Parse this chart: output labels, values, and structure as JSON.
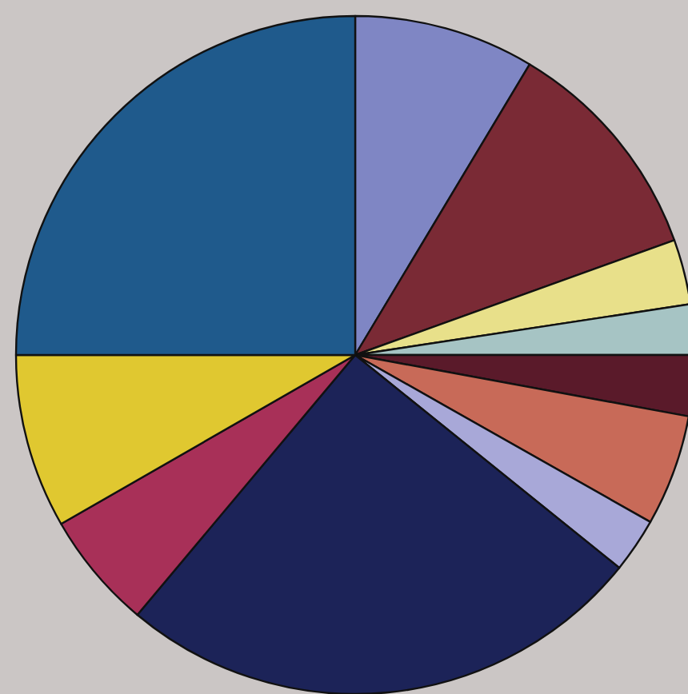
{
  "chart_data": {
    "type": "pie",
    "categories": [
      null,
      null,
      null,
      null,
      null,
      null,
      null,
      null,
      null,
      null,
      null
    ],
    "values": [
      8.6,
      10.9,
      3.1,
      2.4,
      2.9,
      5.3,
      2.6,
      25.3,
      5.6,
      8.3,
      25.0
    ],
    "colors": [
      "#7f86c4",
      "#7a2a35",
      "#e8e08a",
      "#a6c4c4",
      "#5a1a2a",
      "#c86a58",
      "#a8a8d8",
      "#1c2358",
      "#a83058",
      "#e0c830",
      "#1f5a8c"
    ]
  }
}
